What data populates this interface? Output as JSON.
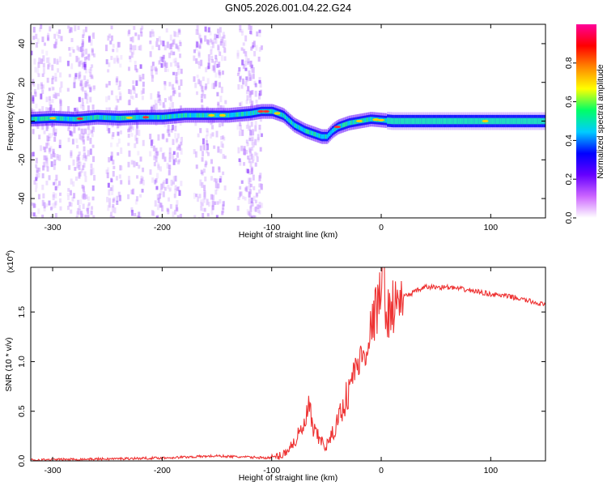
{
  "title": "GN05.2026.001.04.22.G24",
  "chart_data": [
    {
      "type": "heatmap",
      "xlabel": "Height of straight line (km)",
      "ylabel": "Frequency (Hz)",
      "xlim": [
        -320,
        150
      ],
      "ylim": [
        -50,
        50
      ],
      "x_ticks": [
        -300,
        -200,
        -100,
        0,
        100
      ],
      "y_ticks": [
        -40,
        -20,
        0,
        20,
        40
      ],
      "grid": false,
      "colorbar": {
        "label": "Normalized spectral amplitude",
        "range": [
          0,
          1
        ],
        "ticks": [
          0.0,
          0.2,
          0.4,
          0.6,
          0.8
        ],
        "colormap": [
          "#ffffff",
          "#cc66ff",
          "#6600ff",
          "#0000ff",
          "#00ccff",
          "#00ff66",
          "#ffff00",
          "#ff8800",
          "#ff0000",
          "#ff0099"
        ]
      },
      "ridge": {
        "x": [
          -320,
          -300,
          -280,
          -260,
          -240,
          -220,
          -200,
          -180,
          -160,
          -140,
          -120,
          -110,
          -100,
          -90,
          -80,
          -70,
          -60,
          -55,
          -50,
          -45,
          -40,
          -30,
          -20,
          -10,
          0,
          10,
          30,
          60,
          100,
          150
        ],
        "frequency": [
          1,
          1.5,
          1,
          2,
          1.5,
          2,
          2,
          3,
          3,
          3,
          4,
          5,
          5,
          3,
          -2,
          -5,
          -7,
          -8,
          -8,
          -5,
          -3,
          -1,
          0,
          1,
          0.5,
          0,
          0,
          0,
          0,
          0
        ]
      }
    },
    {
      "type": "line",
      "xlabel": "Height of straight line (km)",
      "ylabel": "SNR (10 * v/v)",
      "y_multiplier": "(x10",
      "y_multiplier_exp": "4",
      "y_multiplier_close": ")",
      "xlim": [
        -320,
        150
      ],
      "ylim": [
        0,
        1.95
      ],
      "x_ticks": [
        -300,
        -200,
        -100,
        0,
        100
      ],
      "y_ticks": [
        "0.0",
        "0.5",
        "1.0",
        "1.5"
      ],
      "y_tick_values": [
        0,
        0.5,
        1.0,
        1.5
      ],
      "grid": false,
      "color": "#ee3333",
      "series": [
        {
          "x": [
            -320,
            -250,
            -200,
            -150,
            -130,
            -100,
            -90,
            -80,
            -70,
            -66,
            -62,
            -55,
            -50,
            -45,
            -40,
            -35,
            -30,
            -25,
            -20,
            -15,
            -10,
            -5,
            0,
            2,
            5,
            10,
            20,
            30,
            40,
            60,
            80,
            100,
            120,
            150
          ],
          "values": [
            0.01,
            0.02,
            0.03,
            0.05,
            0.04,
            0.03,
            0.06,
            0.18,
            0.35,
            0.55,
            0.3,
            0.2,
            0.15,
            0.25,
            0.4,
            0.55,
            0.7,
            0.9,
            1.0,
            1.1,
            1.3,
            1.5,
            1.7,
            1.95,
            1.45,
            1.55,
            1.65,
            1.7,
            1.75,
            1.75,
            1.72,
            1.68,
            1.65,
            1.57
          ]
        }
      ]
    }
  ]
}
